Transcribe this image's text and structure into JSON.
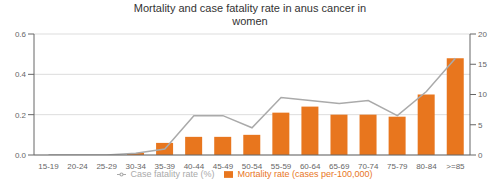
{
  "chart_data": {
    "type": "bar",
    "title": "Mortality and case fatality rate in anus cancer in\nwomen",
    "categories": [
      "15-19",
      "20-24",
      "25-29",
      "30-34",
      "35-39",
      "40-44",
      "45-49",
      "50-54",
      "55-59",
      "60-64",
      "65-69",
      "70-74",
      "75-79",
      "80-84",
      ">=85"
    ],
    "series": [
      {
        "name": "Mortality rate (cases per-100,000)",
        "type": "bar",
        "color": "#E8761E",
        "values": [
          0.0,
          0.0,
          0.0,
          0.01,
          0.06,
          0.09,
          0.09,
          0.1,
          0.21,
          0.24,
          0.2,
          0.2,
          0.19,
          0.3,
          0.48
        ]
      },
      {
        "name": "Case fatality rate (%)",
        "type": "line",
        "axis": "y2",
        "color": "#AAAAAA",
        "values": [
          0.0,
          0.0,
          0.0,
          0.3,
          1.0,
          6.5,
          6.5,
          4.5,
          9.5,
          9.0,
          8.5,
          9.0,
          6.5,
          10.5,
          16.0
        ]
      }
    ],
    "ylim": [
      0,
      0.6
    ],
    "yticks": [
      {
        "value": 0,
        "label": "0.0"
      },
      0.2,
      0.4,
      0.6
    ],
    "y2lim": [
      0,
      20
    ],
    "y2ticks": [
      0,
      5,
      10,
      15,
      20
    ],
    "grid": true,
    "legend": "bottom"
  }
}
